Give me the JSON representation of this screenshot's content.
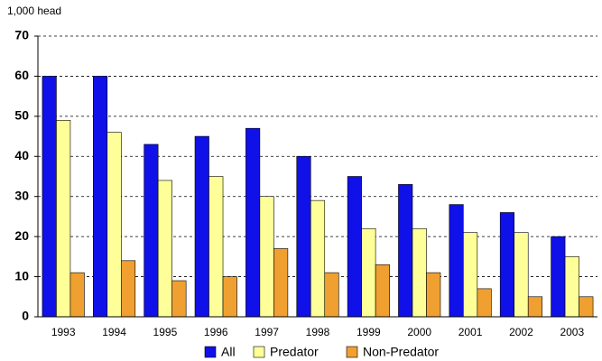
{
  "chart_data": {
    "type": "bar",
    "y_label": "1,000 head",
    "categories": [
      "1993",
      "1994",
      "1995",
      "1996",
      "1997",
      "1998",
      "1999",
      "2000",
      "2001",
      "2002",
      "2003"
    ],
    "series": [
      {
        "name": "All",
        "color": "#1010e8",
        "values": [
          60,
          60,
          43,
          45,
          47,
          40,
          35,
          33,
          28,
          26,
          20
        ]
      },
      {
        "name": "Predator",
        "color": "#ffff99",
        "values": [
          49,
          46,
          34,
          35,
          30,
          29,
          22,
          22,
          21,
          21,
          15
        ]
      },
      {
        "name": "Non-Predator",
        "color": "#f0a030",
        "values": [
          11,
          14,
          9,
          10,
          17,
          11,
          13,
          11,
          7,
          5,
          5
        ]
      }
    ],
    "ylim": [
      0,
      70
    ],
    "yticks": [
      0,
      10,
      20,
      30,
      40,
      50,
      60,
      70
    ],
    "grid": true,
    "legend": "bottom"
  }
}
